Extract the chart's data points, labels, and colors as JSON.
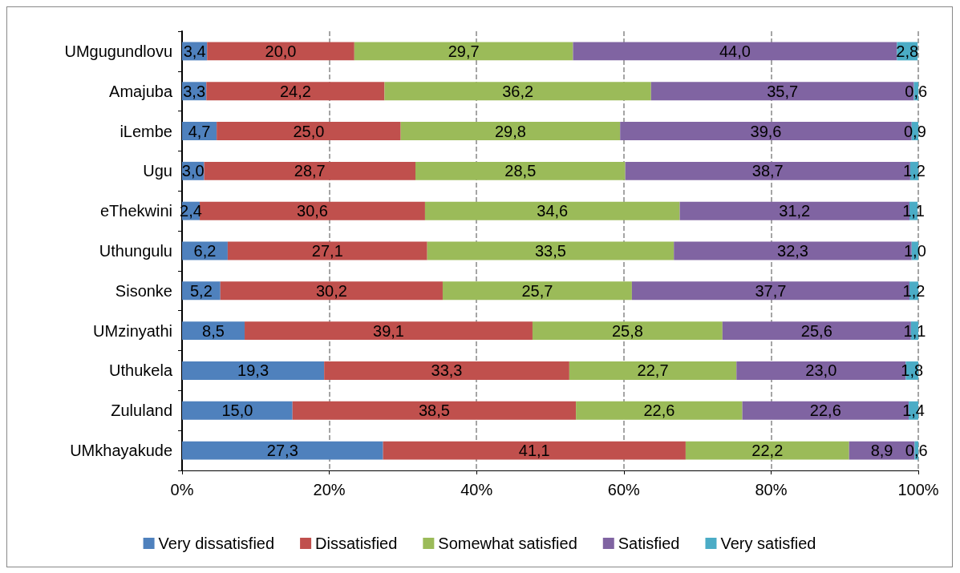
{
  "chart_data": {
    "type": "bar",
    "orientation": "horizontal",
    "stacked": true,
    "categories": [
      "UMgugundlovu",
      "Amajuba",
      "iLembe",
      "Ugu",
      "eThekwini",
      "Uthungulu",
      "Sisonke",
      "UMzinyathi",
      "Uthukela",
      "Zululand",
      "UMkhayakude"
    ],
    "series": [
      {
        "name": "Very dissatisfied",
        "color": "#4f81bd",
        "values": [
          3.4,
          3.3,
          4.7,
          3.0,
          2.4,
          6.2,
          5.2,
          8.5,
          19.3,
          15.0,
          27.3
        ],
        "value_labels": [
          "3,4",
          "3,3",
          "4,7",
          "3,0",
          "2,4",
          "6,2",
          "5,2",
          "8,5",
          "19,3",
          "15,0",
          "27,3"
        ]
      },
      {
        "name": "Dissatisfied",
        "color": "#c0504d",
        "values": [
          20.0,
          24.2,
          25.0,
          28.7,
          30.6,
          27.1,
          30.2,
          39.1,
          33.3,
          38.5,
          41.1
        ],
        "value_labels": [
          "20,0",
          "24,2",
          "25,0",
          "28,7",
          "30,6",
          "27,1",
          "30,2",
          "39,1",
          "33,3",
          "38,5",
          "41,1"
        ]
      },
      {
        "name": "Somewhat satisfied",
        "color": "#9bbb59",
        "values": [
          29.7,
          36.2,
          29.8,
          28.5,
          34.6,
          33.5,
          25.7,
          25.8,
          22.7,
          22.6,
          22.2
        ],
        "value_labels": [
          "29,7",
          "36,2",
          "29,8",
          "28,5",
          "34,6",
          "33,5",
          "25,7",
          "25,8",
          "22,7",
          "22,6",
          "22,2"
        ]
      },
      {
        "name": "Satisfied",
        "color": "#8064a2",
        "values": [
          44.0,
          35.7,
          39.6,
          38.7,
          31.2,
          32.3,
          37.7,
          25.6,
          23.0,
          22.6,
          8.9
        ],
        "value_labels": [
          "44,0",
          "35,7",
          "39,6",
          "38,7",
          "31,2",
          "32,3",
          "37,7",
          "25,6",
          "23,0",
          "22,6",
          "8,9"
        ]
      },
      {
        "name": "Very satisfied",
        "color": "#4bacc6",
        "values": [
          2.8,
          0.6,
          0.9,
          1.2,
          1.1,
          1.0,
          1.2,
          1.1,
          1.8,
          1.4,
          0.6
        ],
        "value_labels": [
          "2,8",
          "0,6",
          "0,9",
          "1,2",
          "1,1",
          "1,0",
          "1,2",
          "1,1",
          "1,8",
          "1,4",
          "0,6"
        ]
      }
    ],
    "xlim": [
      0,
      100
    ],
    "xticks": [
      {
        "value": 0,
        "label": "0%"
      },
      {
        "value": 20,
        "label": "20%"
      },
      {
        "value": 40,
        "label": "40%"
      },
      {
        "value": 60,
        "label": "60%"
      },
      {
        "value": 80,
        "label": "80%"
      },
      {
        "value": 100,
        "label": "100%"
      }
    ],
    "grid": "x",
    "legend": "bottom"
  }
}
